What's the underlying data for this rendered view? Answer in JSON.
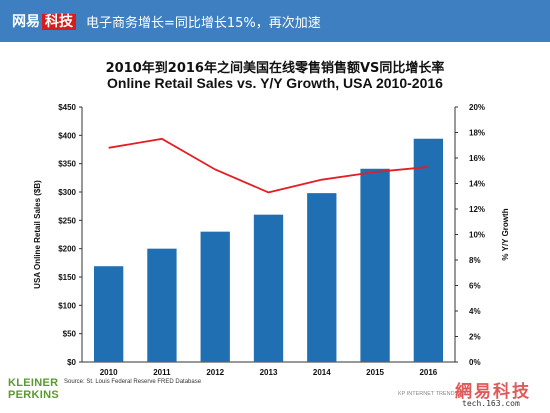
{
  "header": {
    "brand_left": "网易",
    "brand_right": "科技",
    "title": "电子商务增长=同比增长15%，再次加速"
  },
  "chart_title_cn": "2010年到2016年之间美国在线零售销售额VS同比增长率",
  "chart_data": {
    "type": "bar",
    "title": "Online Retail Sales vs. Y/Y Growth, USA 2010-2016",
    "categories": [
      "2010",
      "2011",
      "2012",
      "2013",
      "2014",
      "2015",
      "2016"
    ],
    "series": [
      {
        "name": "",
        "type": "bar",
        "axis": "left",
        "values": [
          169,
          200,
          230,
          260,
          298,
          341,
          394
        ]
      },
      {
        "name": "",
        "type": "line",
        "axis": "right",
        "values": [
          16.8,
          17.5,
          15.1,
          13.3,
          14.3,
          14.9,
          15.3
        ]
      }
    ],
    "ylabel": "USA Online Retail Sales ($B)",
    "y2label": "% Y/Y Growth",
    "ylim": [
      0,
      450
    ],
    "y2lim": [
      0,
      20
    ],
    "yticks": [
      "$0",
      "$50",
      "$100",
      "$150",
      "$200",
      "$250",
      "$300",
      "$350",
      "$400",
      "$450"
    ],
    "y2ticks": [
      "0%",
      "2%",
      "4%",
      "6%",
      "8%",
      "10%",
      "12%",
      "14%",
      "16%",
      "18%",
      "20%"
    ],
    "bar_color": "#1f6fb2",
    "line_color": "#e31e24",
    "grid": false
  },
  "source": "Source: St. Louis Federal Reserve FRED Database",
  "logo": {
    "line1": "KLEINER",
    "line2": "PERKINS"
  },
  "kp_footer": "KP INTERNET TRENDS 2017",
  "watermark": {
    "cn": "網易科技",
    "url": "tech.163.com"
  }
}
